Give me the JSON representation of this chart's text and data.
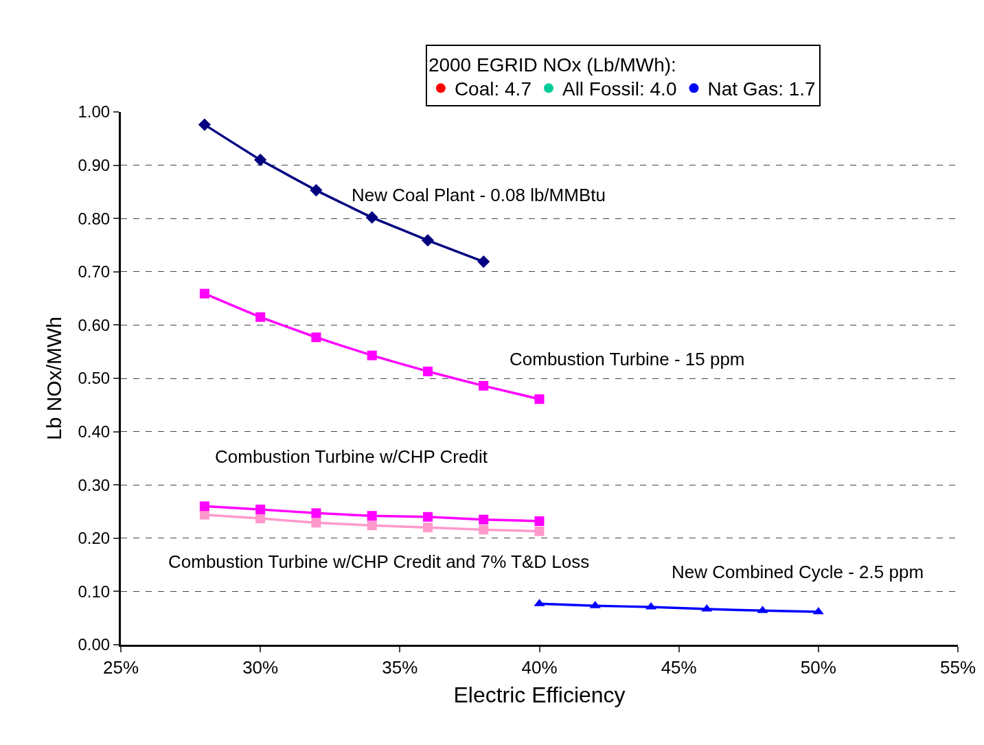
{
  "chart_data": {
    "type": "line",
    "xlabel": "Electric Efficiency",
    "ylabel": "Lb NOx/MWh",
    "legend_title": "2000 EGRID NOx (Lb/MWh):",
    "legend": "top",
    "xlim": [
      25,
      55
    ],
    "xticks": [
      {
        "value": 25,
        "label": "25%"
      },
      {
        "value": 30,
        "label": "30%"
      },
      {
        "value": 35,
        "label": "35%"
      },
      {
        "value": 40,
        "label": "40%"
      },
      {
        "value": 45,
        "label": "45%"
      },
      {
        "value": 50,
        "label": "50%"
      },
      {
        "value": 55,
        "label": "55%"
      }
    ],
    "ylim": [
      0,
      1
    ],
    "yticks": [
      {
        "value": 0,
        "label": "0.00"
      },
      {
        "value": 0.1,
        "label": "0.10"
      },
      {
        "value": 0.2,
        "label": "0.20"
      },
      {
        "value": 0.3,
        "label": "0.30"
      },
      {
        "value": 0.4,
        "label": "0.40"
      },
      {
        "value": 0.5,
        "label": "0.50"
      },
      {
        "value": 0.6,
        "label": "0.60"
      },
      {
        "value": 0.7,
        "label": "0.70"
      },
      {
        "value": 0.8,
        "label": "0.80"
      },
      {
        "value": 0.9,
        "label": "0.90"
      },
      {
        "value": 1.0,
        "label": "1.00"
      }
    ],
    "grid": "y",
    "line_style": "solid",
    "series": [
      {
        "name": "New Coal Plant - 0.08 lb/MMBtu",
        "color": "#000080",
        "marker": "diamond",
        "x": [
          28,
          30,
          32,
          34,
          36,
          38
        ],
        "values": [
          0.976,
          0.91,
          0.853,
          0.802,
          0.759,
          0.719
        ]
      },
      {
        "name": "Combustion Turbine - 15 ppm",
        "color": "#ff00ff",
        "marker": "square",
        "x": [
          28,
          30,
          32,
          34,
          36,
          38,
          40
        ],
        "values": [
          0.659,
          0.615,
          0.577,
          0.543,
          0.513,
          0.486,
          0.461
        ]
      },
      {
        "name": "Combustion Turbine w/CHP Credit and 7% T&D Loss",
        "color": "#ff99cc",
        "marker": "square",
        "x": [
          28,
          30,
          32,
          34,
          36,
          38,
          40
        ],
        "values": [
          0.244,
          0.237,
          0.229,
          0.224,
          0.22,
          0.216,
          0.213
        ]
      },
      {
        "name": "Combustion Turbine w/CHP Credit",
        "color": "#ff00ff",
        "marker": "square",
        "x": [
          28,
          30,
          32,
          34,
          36,
          38,
          40
        ],
        "values": [
          0.26,
          0.254,
          0.247,
          0.242,
          0.24,
          0.235,
          0.232
        ]
      },
      {
        "name": "New Combined Cycle - 2.5 ppm",
        "color": "#0000ff",
        "marker": "triangle",
        "x": [
          40,
          42,
          44,
          46,
          48,
          50
        ],
        "values": [
          0.077,
          0.073,
          0.071,
          0.067,
          0.064,
          0.062
        ]
      },
      {
        "type": "scatter",
        "name": "Coal: 4.7",
        "color": "#ff0000",
        "marker": "circle"
      },
      {
        "type": "scatter",
        "name": "All Fossil: 4.0",
        "color": "#00cc99",
        "marker": "circle"
      },
      {
        "type": "scatter",
        "name": "Nat Gas: 1.7",
        "color": "#0000ff",
        "marker": "circle"
      }
    ]
  }
}
